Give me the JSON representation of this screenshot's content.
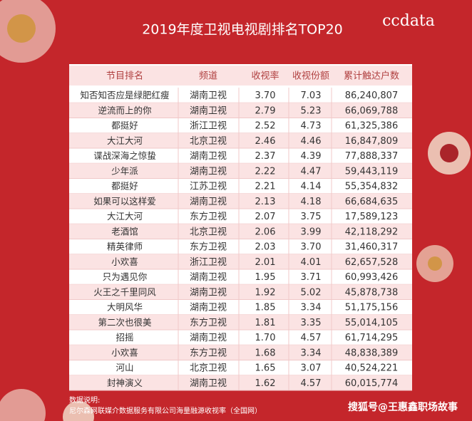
{
  "header": {
    "title": "2019年度卫视电视剧排名TOP20",
    "logo": "ccdata"
  },
  "table": {
    "columns": [
      "节目排名",
      "频道",
      "收视率",
      "收视份额",
      "累计触达户数"
    ],
    "rows": [
      [
        "知否知否应是绿肥红瘦",
        "湖南卫视",
        "3.70",
        "7.03",
        "86,240,807"
      ],
      [
        "逆流而上的你",
        "湖南卫视",
        "2.79",
        "5.23",
        "66,069,788"
      ],
      [
        "都挺好",
        "浙江卫视",
        "2.52",
        "4.73",
        "61,325,386"
      ],
      [
        "大江大河",
        "北京卫视",
        "2.46",
        "4.46",
        "16,847,809"
      ],
      [
        "谍战深海之惊蛰",
        "湖南卫视",
        "2.37",
        "4.39",
        "77,888,337"
      ],
      [
        "少年派",
        "湖南卫视",
        "2.22",
        "4.47",
        "59,443,119"
      ],
      [
        "都挺好",
        "江苏卫视",
        "2.21",
        "4.14",
        "55,354,832"
      ],
      [
        "如果可以这样爱",
        "湖南卫视",
        "2.13",
        "4.18",
        "66,684,635"
      ],
      [
        "大江大河",
        "东方卫视",
        "2.07",
        "3.75",
        "17,589,123"
      ],
      [
        "老酒馆",
        "北京卫视",
        "2.06",
        "3.99",
        "42,118,292"
      ],
      [
        "精英律师",
        "东方卫视",
        "2.03",
        "3.70",
        "31,460,317"
      ],
      [
        "小欢喜",
        "浙江卫视",
        "2.01",
        "4.01",
        "62,657,528"
      ],
      [
        "只为遇见你",
        "湖南卫视",
        "1.95",
        "3.71",
        "60,993,426"
      ],
      [
        "火王之千里同风",
        "湖南卫视",
        "1.92",
        "5.02",
        "45,878,738"
      ],
      [
        "大明风华",
        "湖南卫视",
        "1.85",
        "3.34",
        "51,175,156"
      ],
      [
        "第二次也很美",
        "东方卫视",
        "1.81",
        "3.35",
        "55,014,105"
      ],
      [
        "招摇",
        "湖南卫视",
        "1.70",
        "4.57",
        "61,714,295"
      ],
      [
        "小欢喜",
        "东方卫视",
        "1.68",
        "3.34",
        "48,838,389"
      ],
      [
        "河山",
        "北京卫视",
        "1.65",
        "3.07",
        "40,524,221"
      ],
      [
        "封神演义",
        "湖南卫视",
        "1.62",
        "4.57",
        "60,015,774"
      ]
    ]
  },
  "footer": {
    "label": "数据说明:",
    "lines": [
      "尼尔森网联媒介数据服务有限公司海量融源收视率（全国网）"
    ]
  },
  "watermark": "搜狐号@王惠鑫职场故事"
}
